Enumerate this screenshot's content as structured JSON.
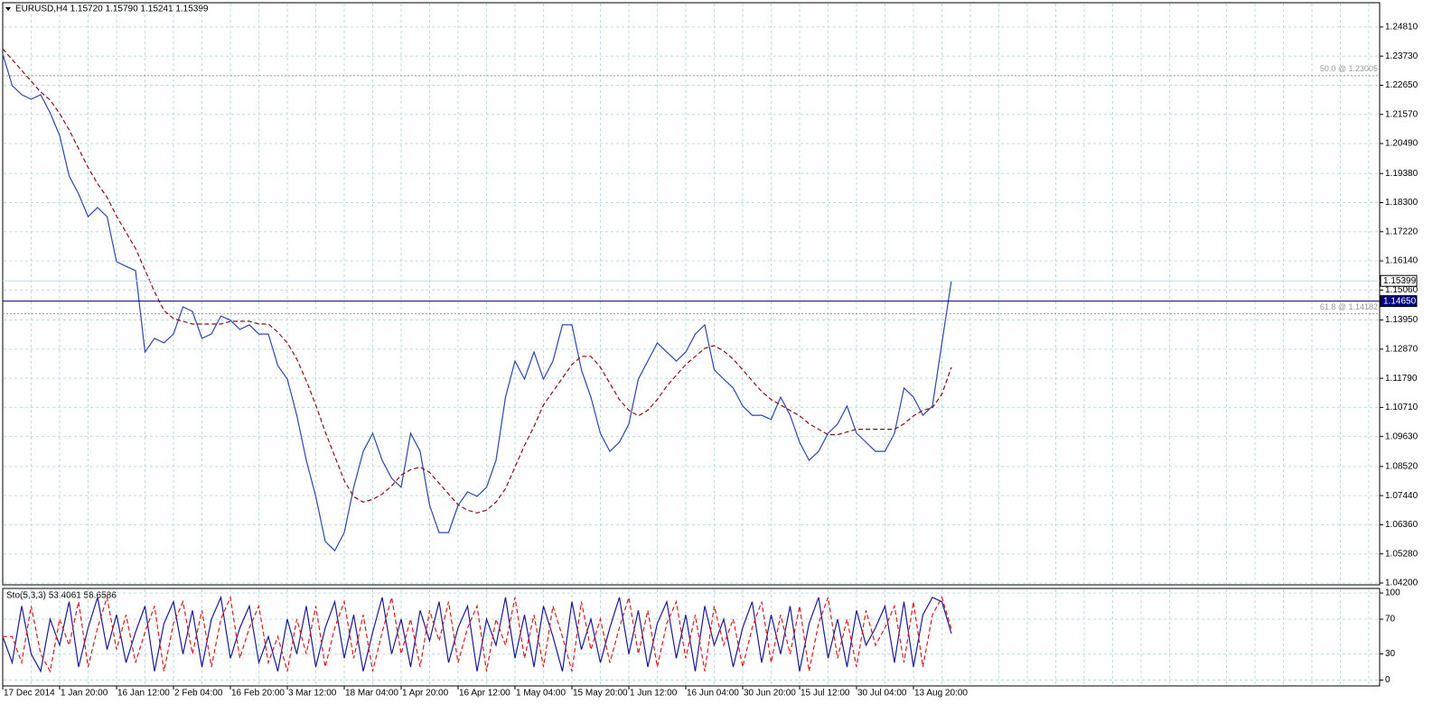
{
  "chart_data": [
    {
      "type": "line",
      "title": "EURUSD,H4 1.15720 1.15790 1.15241 1.15399",
      "categories": [
        "17 Dec 2014",
        null,
        null,
        null,
        null,
        null,
        "1 Jan 20:00",
        null,
        null,
        null,
        null,
        null,
        "16 Jan 12:00",
        null,
        null,
        null,
        null,
        null,
        "2 Feb 04:00",
        null,
        null,
        null,
        null,
        null,
        "16 Feb 20:00",
        null,
        null,
        null,
        null,
        null,
        "3 Mar 12:00",
        null,
        null,
        null,
        null,
        null,
        "18 Mar 04:00",
        null,
        null,
        null,
        null,
        null,
        "1 Apr 20:00",
        null,
        null,
        null,
        null,
        null,
        "16 Apr 12:00",
        null,
        null,
        null,
        null,
        null,
        "1 May 04:00",
        null,
        null,
        null,
        null,
        null,
        "15 May 20:00",
        null,
        null,
        null,
        null,
        null,
        "1 Jun 12:00",
        null,
        null,
        null,
        null,
        null,
        "16 Jun 04:00",
        null,
        null,
        null,
        null,
        null,
        "30 Jun 20:00",
        null,
        null,
        null,
        null,
        null,
        "15 Jul 12:00",
        null,
        null,
        null,
        null,
        null,
        "30 Jul 04:00",
        null,
        null,
        null,
        null,
        null,
        "13 Aug 20:00",
        null,
        null,
        null,
        null
      ],
      "series": [
        {
          "color": "#2c47b0",
          "values": [
            1.2381,
            1.2264,
            1.223,
            1.2213,
            1.223,
            1.2163,
            1.2079,
            1.1929,
            1.1862,
            1.1778,
            1.1812,
            1.1778,
            1.1611,
            1.1594,
            1.1578,
            1.1276,
            1.1327,
            1.131,
            1.1343,
            1.1444,
            1.1427,
            1.1327,
            1.1343,
            1.141,
            1.1394,
            1.136,
            1.1377,
            1.1343,
            1.1343,
            1.1226,
            1.1176,
            1.1042,
            1.0875,
            1.0741,
            1.0574,
            1.054,
            1.0607,
            1.0775,
            1.0908,
            1.0975,
            1.0875,
            1.0808,
            1.0775,
            1.0975,
            1.0908,
            1.0708,
            1.0607,
            1.0607,
            1.0708,
            1.0758,
            1.0741,
            1.0775,
            1.0875,
            1.1109,
            1.1243,
            1.1176,
            1.1276,
            1.1176,
            1.1243,
            1.1377,
            1.1377,
            1.121,
            1.1109,
            1.0975,
            1.0908,
            1.0942,
            1.1009,
            1.1176,
            1.1243,
            1.131,
            1.1276,
            1.1243,
            1.1276,
            1.1343,
            1.1377,
            1.121,
            1.1176,
            1.1143,
            1.1076,
            1.1042,
            1.1042,
            1.1026,
            1.1109,
            1.1042,
            1.0942,
            1.0875,
            1.0908,
            1.0975,
            1.1009,
            1.1076,
            1.0975,
            1.0942,
            1.0908,
            1.0908,
            1.0975,
            1.1143,
            1.1109,
            1.1042,
            1.1076,
            1.131,
            1.15399
          ]
        },
        {
          "color": "#8b1010",
          "dashed": true,
          "values": [
            1.24,
            1.236,
            1.232,
            1.228,
            1.224,
            1.221,
            1.216,
            1.21,
            1.203,
            1.196,
            1.19,
            1.185,
            1.178,
            1.172,
            1.166,
            1.158,
            1.15,
            1.143,
            1.14,
            1.139,
            1.138,
            1.138,
            1.138,
            1.138,
            1.139,
            1.139,
            1.139,
            1.138,
            1.138,
            1.135,
            1.131,
            1.125,
            1.117,
            1.108,
            1.098,
            1.089,
            1.08,
            1.074,
            1.072,
            1.073,
            1.075,
            1.078,
            1.082,
            1.084,
            1.085,
            1.083,
            1.079,
            1.075,
            1.071,
            1.069,
            1.068,
            1.069,
            1.072,
            1.077,
            1.085,
            1.093,
            1.1,
            1.108,
            1.113,
            1.118,
            1.123,
            1.126,
            1.126,
            1.122,
            1.116,
            1.11,
            1.106,
            1.104,
            1.106,
            1.11,
            1.115,
            1.119,
            1.123,
            1.126,
            1.129,
            1.13,
            1.128,
            1.125,
            1.121,
            1.117,
            1.113,
            1.11,
            1.108,
            1.106,
            1.104,
            1.101,
            1.099,
            1.097,
            1.097,
            1.098,
            1.099,
            1.099,
            1.099,
            1.099,
            1.099,
            1.101,
            1.104,
            1.106,
            1.107,
            1.112,
            1.122
          ]
        }
      ],
      "ylim": [
        1.04133,
        1.2571
      ],
      "yticks": [
        {
          "value": 1.2481,
          "label": "1.24810"
        },
        {
          "value": 1.2373,
          "label": "1.23730"
        },
        {
          "value": 1.2265,
          "label": "1.22650"
        },
        {
          "value": 1.2157,
          "label": "1.21570"
        },
        {
          "value": 1.2049,
          "label": "1.20490"
        },
        {
          "value": 1.1938,
          "label": "1.19380"
        },
        {
          "value": 1.183,
          "label": "1.18300"
        },
        {
          "value": 1.1722,
          "label": "1.17220"
        },
        {
          "value": 1.1614,
          "label": "1.16140"
        },
        {
          "value": 1.1506,
          "label": "1.15060"
        },
        {
          "value": 1.1395,
          "label": "1.13950"
        },
        {
          "value": 1.1287,
          "label": "1.12870"
        },
        {
          "value": 1.1179,
          "label": "1.11790"
        },
        {
          "value": 1.1071,
          "label": "1.10710"
        },
        {
          "value": 1.0963,
          "label": "1.09630"
        },
        {
          "value": 1.0852,
          "label": "1.08520"
        },
        {
          "value": 1.0744,
          "label": "1.07440"
        },
        {
          "value": 1.0636,
          "label": "1.06360"
        },
        {
          "value": 1.0528,
          "label": "1.05280"
        },
        {
          "value": 1.042,
          "label": "1.04200"
        }
      ],
      "levels": [
        {
          "value": 1.23005,
          "label": "50.0 @ 1.23005"
        },
        {
          "value": 1.14182,
          "label": "61.8 @ 1.14182"
        }
      ],
      "hlines": [
        {
          "value": 1.15399,
          "label": "1.15399",
          "color": "#ffffff",
          "text_color": "#000000"
        },
        {
          "value": 1.1465,
          "label": "1.14650",
          "color": "#000080",
          "text_color": "#ffffff"
        }
      ],
      "grid": true
    },
    {
      "type": "line",
      "title": "Sto(5,3,3) 53.4061 58.6586",
      "series": [
        {
          "color": "#1a1a9a",
          "values": [
            50,
            20,
            85,
            30,
            10,
            70,
            40,
            90,
            15,
            60,
            95,
            35,
            75,
            20,
            55,
            85,
            10,
            65,
            90,
            30,
            80,
            15,
            70,
            95,
            25,
            60,
            85,
            20,
            50,
            10,
            70,
            30,
            85,
            15,
            60,
            90,
            25,
            75,
            10,
            55,
            95,
            30,
            70,
            15,
            80,
            45,
            90,
            20,
            60,
            85,
            10,
            70,
            40,
            95,
            25,
            75,
            15,
            85,
            50,
            10,
            90,
            35,
            70,
            20,
            60,
            95,
            30,
            80,
            15,
            65,
            90,
            25,
            75,
            10,
            85,
            40,
            70,
            15,
            60,
            90,
            20,
            75,
            30,
            85,
            10,
            65,
            95,
            25,
            70,
            15,
            80,
            40,
            60,
            85,
            20,
            90,
            15,
            75,
            95,
            90,
            53.4061
          ]
        },
        {
          "color": "#e01818",
          "dashed": true,
          "values": [
            50,
            50,
            20,
            85,
            30,
            10,
            70,
            40,
            90,
            15,
            60,
            95,
            35,
            75,
            20,
            55,
            85,
            10,
            65,
            90,
            30,
            80,
            15,
            70,
            95,
            25,
            60,
            85,
            20,
            50,
            10,
            70,
            30,
            85,
            15,
            60,
            90,
            25,
            75,
            10,
            55,
            95,
            30,
            70,
            15,
            80,
            45,
            90,
            20,
            60,
            85,
            10,
            70,
            40,
            95,
            25,
            75,
            15,
            85,
            50,
            10,
            90,
            35,
            70,
            20,
            60,
            95,
            30,
            80,
            15,
            65,
            90,
            25,
            75,
            10,
            85,
            40,
            70,
            15,
            60,
            90,
            20,
            75,
            30,
            85,
            10,
            65,
            95,
            25,
            70,
            15,
            80,
            40,
            60,
            85,
            20,
            90,
            15,
            75,
            95,
            58.6586
          ]
        }
      ],
      "ylim": [
        -6.75,
        105.25
      ],
      "yticks": [
        0,
        30,
        70,
        100
      ],
      "grid": true
    }
  ]
}
